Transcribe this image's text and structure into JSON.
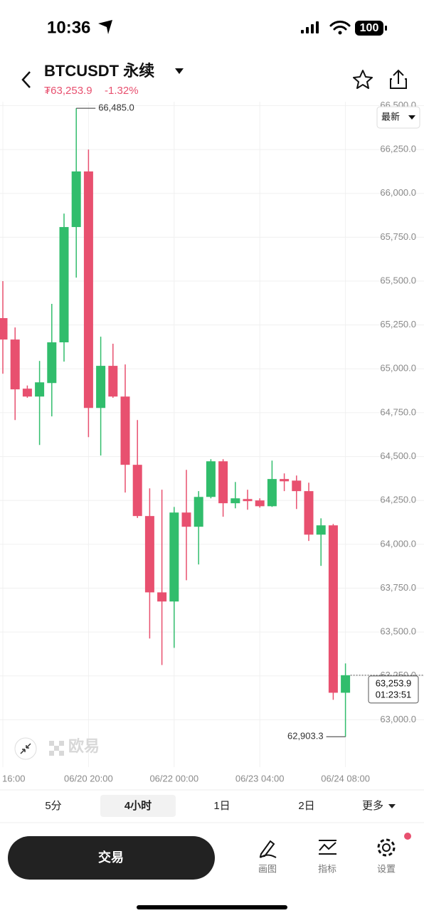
{
  "status_bar": {
    "time": "10:36",
    "battery": "100"
  },
  "header": {
    "symbol": "BTCUSDT 永续",
    "price": "₮63,253.9",
    "change": "-1.32%"
  },
  "chart_data": {
    "type": "candlestick",
    "categories": [
      "16:00",
      null,
      null,
      null,
      null,
      null,
      null,
      "06/20 20:00",
      null,
      null,
      null,
      null,
      null,
      null,
      "06/22 00:00",
      null,
      null,
      null,
      null,
      null,
      null,
      "06/23 04:00",
      null,
      null,
      null,
      null,
      null,
      null,
      "06/24 08:00"
    ],
    "open": [
      65289,
      65167,
      64887,
      64842,
      64919,
      65151,
      65808,
      66125,
      64777,
      65017,
      64842,
      64453,
      64161,
      63726,
      63674,
      64181,
      64100,
      64270,
      64473,
      64234,
      64258,
      64250,
      64217,
      64372,
      64363,
      64303,
      64055,
      64108,
      63154
    ],
    "high": [
      65500,
      65236,
      64905,
      65045,
      65370,
      65885,
      66485,
      66250,
      65183,
      65143,
      65025,
      64708,
      64319,
      64311,
      64213,
      64424,
      64303,
      64485,
      64485,
      64355,
      64311,
      64262,
      64477,
      64404,
      64392,
      64351,
      64148,
      64116,
      63321
    ],
    "low": [
      64972,
      64708,
      64835,
      64566,
      64729,
      65041,
      65520,
      64611,
      64506,
      64835,
      64295,
      64150,
      63463,
      63312,
      63410,
      63795,
      63885,
      64262,
      64157,
      64205,
      64197,
      64209,
      64213,
      64303,
      64201,
      64019,
      63877,
      63114,
      62903.3
    ],
    "close": [
      65167,
      64883,
      64842,
      64923,
      65151,
      65808,
      66125,
      64777,
      65017,
      64842,
      64453,
      64161,
      63726,
      63674,
      64181,
      64100,
      64270,
      64473,
      64234,
      64262,
      64246,
      64217,
      64372,
      64359,
      64303,
      64055,
      64108,
      63154,
      63253.9
    ],
    "up_color": "#31bd6c",
    "down_color": "#e8506f",
    "ylim": [
      62730,
      66522
    ],
    "yticks": [
      {
        "value": 63000,
        "label": "63,000.0"
      },
      {
        "value": 63250,
        "label": "63,250.0"
      },
      {
        "value": 63500,
        "label": "63,500.0"
      },
      {
        "value": 63750,
        "label": "63,750.0"
      },
      {
        "value": 64000,
        "label": "64,000.0"
      },
      {
        "value": 64250,
        "label": "64,250.0"
      },
      {
        "value": 64500,
        "label": "64,500.0"
      },
      {
        "value": 64750,
        "label": "64,750.0"
      },
      {
        "value": 65000,
        "label": "65,000.0"
      },
      {
        "value": 65250,
        "label": "65,250.0"
      },
      {
        "value": 65500,
        "label": "65,500.0"
      },
      {
        "value": 65750,
        "label": "65,750.0"
      },
      {
        "value": 66000,
        "label": "66,000.0"
      },
      {
        "value": 66250,
        "label": "66,250.0"
      },
      {
        "value": 66500,
        "label": "66,500.0"
      }
    ],
    "grid": true,
    "price_mode": "最新",
    "high_marker": {
      "value": 66485,
      "label": "66,485.0"
    },
    "low_marker": {
      "value": 62903.3,
      "label": "62,903.3"
    },
    "last_price": {
      "value": 63253.9,
      "label": "63,253.9"
    },
    "countdown": "01:23:51",
    "watermark": "欧易"
  },
  "timeframes": [
    "5分",
    "4小时",
    "1日",
    "2日",
    "更多"
  ],
  "active_timeframe": 1,
  "toolbar": {
    "trade": "交易",
    "tools": [
      "画图",
      "指标",
      "设置"
    ]
  }
}
